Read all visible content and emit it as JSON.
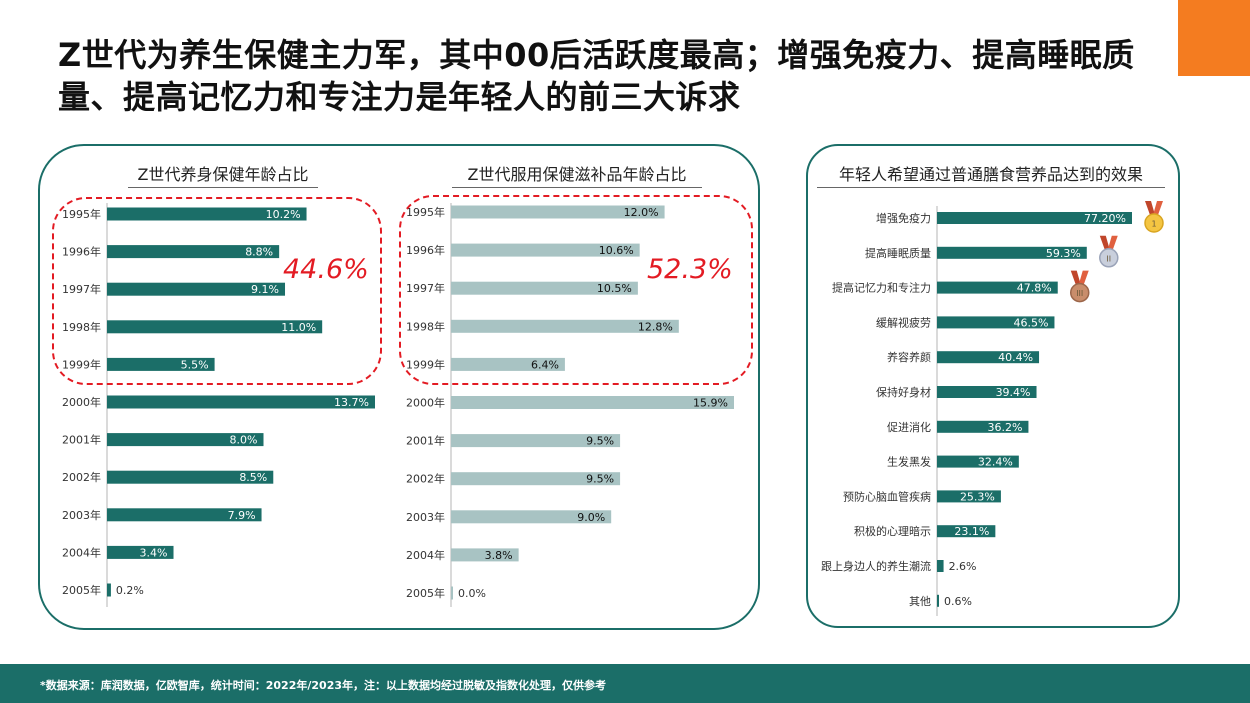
{
  "headline": "Z世代为养生保健主力军，其中00后活跃度最高；增强免疫力、提高睡眠质量、提高记忆力和专注力是年轻人的前三大诉求",
  "footer": {
    "note": "*数据来源：库润数据，亿欧智库，统计时间：2022年/2023年，注：以上数据均经过脱敏及指数化处理，仅供参考"
  },
  "colors": {
    "accent_orange": "#f47c20",
    "teal": "#1b6e68",
    "light_teal": "#a8c3c3",
    "highlight_red": "#e31b23"
  },
  "highlights": {
    "left_total": "44.6%",
    "right_total": "52.3%"
  },
  "medal_icons": [
    "gold-medal-icon",
    "silver-medal-icon",
    "bronze-medal-icon"
  ],
  "chart_data": [
    {
      "type": "bar",
      "orientation": "horizontal",
      "title": "Z世代养身保健年龄占比",
      "categories": [
        "1995年",
        "1996年",
        "1997年",
        "1998年",
        "1999年",
        "2000年",
        "2001年",
        "2002年",
        "2003年",
        "2004年",
        "2005年"
      ],
      "values": [
        10.2,
        8.8,
        9.1,
        11.0,
        5.5,
        13.7,
        8.0,
        8.5,
        7.9,
        3.4,
        0.2
      ],
      "labels": [
        "10.2%",
        "8.8%",
        "9.1%",
        "11.0%",
        "5.5%",
        "13.7%",
        "8.0%",
        "8.5%",
        "7.9%",
        "3.4%",
        "0.2%"
      ],
      "xlim": [
        0,
        13.7
      ],
      "color": "#1b6e68",
      "grid": false
    },
    {
      "type": "bar",
      "orientation": "horizontal",
      "title": "Z世代服用保健滋补品年龄占比",
      "categories": [
        "1995年",
        "1996年",
        "1997年",
        "1998年",
        "1999年",
        "2000年",
        "2001年",
        "2002年",
        "2003年",
        "2004年",
        "2005年"
      ],
      "values": [
        12.0,
        10.6,
        10.5,
        12.8,
        6.4,
        15.9,
        9.5,
        9.5,
        9.0,
        3.8,
        0.0
      ],
      "labels": [
        "12.0%",
        "10.6%",
        "10.5%",
        "12.8%",
        "6.4%",
        "15.9%",
        "9.5%",
        "9.5%",
        "9.0%",
        "3.8%",
        "0.0%"
      ],
      "xlim": [
        0,
        15.9
      ],
      "color": "#a8c3c3",
      "grid": false
    },
    {
      "type": "bar",
      "orientation": "horizontal",
      "title": "年轻人希望通过普通膳食营养品达到的效果",
      "categories": [
        "增强免疫力",
        "提高睡眠质量",
        "提高记忆力和专注力",
        "缓解视疲劳",
        "养容养颜",
        "保持好身材",
        "促进消化",
        "生发黑发",
        "预防心脑血管疾病",
        "积极的心理暗示",
        "跟上身边人的养生潮流",
        "其他"
      ],
      "values": [
        77.2,
        59.3,
        47.8,
        46.5,
        40.4,
        39.4,
        36.2,
        32.4,
        25.3,
        23.1,
        2.6,
        0.6
      ],
      "labels": [
        "77.20%",
        "59.3%",
        "47.8%",
        "46.5%",
        "40.4%",
        "39.4%",
        "36.2%",
        "32.4%",
        "25.3%",
        "23.1%",
        "2.6%",
        "0.6%"
      ],
      "xlim": [
        0,
        77.2
      ],
      "color": "#1b6e68",
      "grid": false
    }
  ]
}
